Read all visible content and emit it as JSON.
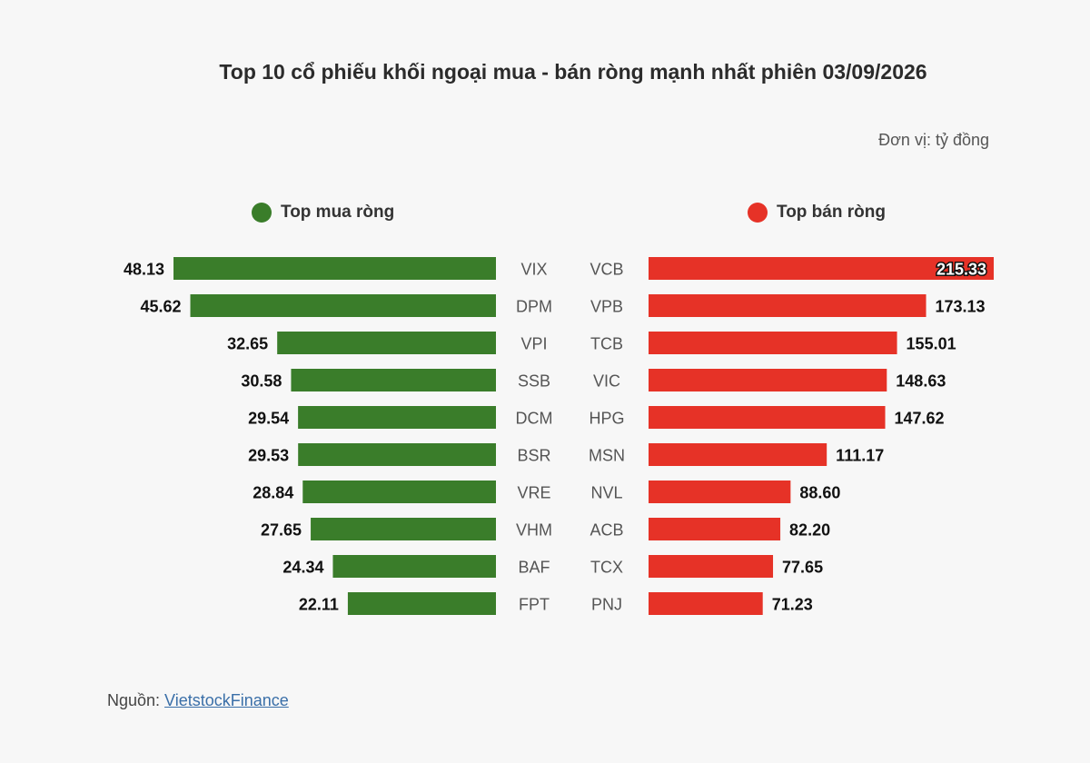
{
  "chart_data": {
    "type": "bar",
    "title": "Top 10 cổ phiếu khối ngoại mua - bán ròng mạnh nhất phiên 03/09/2026",
    "unit_label": "Đơn vị: tỷ đồng",
    "colors": {
      "buy": "#3a7d2a",
      "sell": "#e63227"
    },
    "buy": {
      "name": "Top mua ròng",
      "categories": [
        "VIX",
        "DPM",
        "VPI",
        "SSB",
        "DCM",
        "BSR",
        "VRE",
        "VHM",
        "BAF",
        "FPT"
      ],
      "values": [
        48.13,
        45.62,
        32.65,
        30.58,
        29.54,
        29.53,
        28.84,
        27.65,
        24.34,
        22.11
      ]
    },
    "sell": {
      "name": "Top bán ròng",
      "categories": [
        "VCB",
        "VPB",
        "TCB",
        "VIC",
        "HPG",
        "MSN",
        "NVL",
        "ACB",
        "TCX",
        "PNJ"
      ],
      "values": [
        215.33,
        173.13,
        155.01,
        148.63,
        147.62,
        111.17,
        88.6,
        82.2,
        77.65,
        71.23
      ]
    }
  },
  "source": {
    "prefix": "Nguồn: ",
    "link_text": "VietstockFinance"
  }
}
